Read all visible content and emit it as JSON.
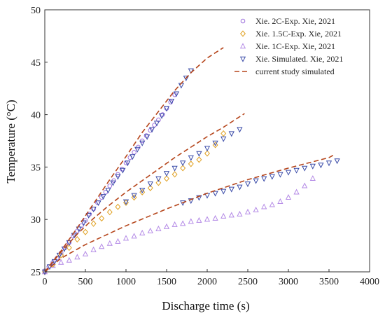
{
  "chart_data": {
    "type": "scatter",
    "xlabel": "Discharge time (s)",
    "ylabel": "Temperature (°C)",
    "xlim": [
      0,
      4000
    ],
    "ylim": [
      25,
      50
    ],
    "x_ticks": [
      "0",
      "500",
      "1000",
      "1500",
      "2000",
      "2500",
      "3000",
      "3500",
      "4000"
    ],
    "y_ticks": [
      "25",
      "30",
      "35",
      "40",
      "45",
      "50"
    ],
    "grid": false,
    "legend_position": "top-right",
    "series": [
      {
        "name": "Xie. 2C-Exp. Xie, 2021",
        "marker": "circle",
        "color": "#9b6fdc",
        "x": [
          0,
          50,
          100,
          150,
          200,
          250,
          300,
          350,
          400,
          450,
          500,
          550,
          600,
          650,
          700,
          750,
          800,
          850,
          900,
          950,
          1000,
          1050,
          1100,
          1150,
          1200,
          1250,
          1300,
          1350,
          1400,
          1450,
          1500,
          1550,
          1600
        ],
        "y": [
          25.1,
          25.5,
          25.9,
          26.3,
          26.8,
          27.3,
          27.8,
          28.4,
          28.9,
          29.4,
          29.9,
          30.5,
          31.0,
          31.6,
          32.1,
          32.6,
          33.2,
          33.7,
          34.3,
          34.8,
          35.4,
          35.9,
          36.4,
          36.9,
          37.5,
          38.0,
          38.5,
          39.0,
          39.5,
          40.0,
          40.6,
          41.2,
          41.9
        ]
      },
      {
        "name": "Xie. 1.5C-Exp. Xie, 2021",
        "marker": "diamond",
        "color": "#e0a020",
        "x": [
          0,
          100,
          200,
          300,
          400,
          500,
          600,
          700,
          800,
          900,
          1000,
          1100,
          1200,
          1300,
          1400,
          1500,
          1600,
          1700,
          1800,
          1900,
          2000,
          2100,
          2200
        ],
        "y": [
          25.0,
          25.7,
          26.6,
          27.3,
          28.1,
          28.8,
          29.6,
          30.1,
          30.7,
          31.2,
          31.6,
          32.1,
          32.6,
          33.0,
          33.5,
          33.9,
          34.3,
          34.9,
          35.3,
          35.7,
          36.3,
          37.1,
          38.2
        ]
      },
      {
        "name": "Xie. 1C-Exp. Xie, 2021",
        "marker": "triangle-up",
        "color": "#b48ae6",
        "x": [
          0,
          100,
          200,
          300,
          400,
          500,
          600,
          700,
          800,
          900,
          1000,
          1100,
          1200,
          1300,
          1400,
          1500,
          1600,
          1700,
          1800,
          1900,
          2000,
          2100,
          2200,
          2300,
          2400,
          2500,
          2600,
          2700,
          2800,
          2900,
          3000,
          3100,
          3200,
          3300
        ],
        "y": [
          25.0,
          25.6,
          25.9,
          26.1,
          26.4,
          26.7,
          27.1,
          27.4,
          27.7,
          27.9,
          28.2,
          28.4,
          28.7,
          28.9,
          29.1,
          29.3,
          29.5,
          29.6,
          29.8,
          29.9,
          30.0,
          30.1,
          30.3,
          30.4,
          30.5,
          30.7,
          30.9,
          31.2,
          31.4,
          31.7,
          32.1,
          32.6,
          33.2,
          33.9
        ]
      },
      {
        "name": "Xie. Simulated. Xie, 2021",
        "marker": "triangle-down",
        "color": "#3a4ba8",
        "x": [
          0,
          60,
          120,
          180,
          240,
          300,
          360,
          420,
          480,
          540,
          600,
          660,
          720,
          780,
          840,
          900,
          960,
          1020,
          1080,
          1140,
          1200,
          1260,
          1320,
          1380,
          1440,
          1500,
          1560,
          1620,
          1680,
          1740,
          1800,
          1000,
          1100,
          1200,
          1300,
          1400,
          1500,
          1600,
          1700,
          1800,
          1900,
          2000,
          2100,
          2200,
          2300,
          2400,
          1700,
          1800,
          1900,
          2000,
          2100,
          2200,
          2300,
          2400,
          2500,
          2600,
          2700,
          2800,
          2900,
          3000,
          3100,
          3200,
          3300,
          3400,
          3500,
          3600
        ],
        "y": [
          25.0,
          25.5,
          26.0,
          26.6,
          27.2,
          27.8,
          28.5,
          29.1,
          29.7,
          30.4,
          31.0,
          31.6,
          32.2,
          32.8,
          33.5,
          34.1,
          34.7,
          35.4,
          36.0,
          36.7,
          37.3,
          37.9,
          38.6,
          39.2,
          39.9,
          40.6,
          41.3,
          42.0,
          42.8,
          43.5,
          44.2,
          31.7,
          32.3,
          32.8,
          33.4,
          33.9,
          34.4,
          34.9,
          35.4,
          35.9,
          36.3,
          36.8,
          37.3,
          37.7,
          38.2,
          38.6,
          31.6,
          31.8,
          32.1,
          32.3,
          32.5,
          32.7,
          32.9,
          33.1,
          33.4,
          33.7,
          33.9,
          34.1,
          34.3,
          34.5,
          34.7,
          34.9,
          35.1,
          35.2,
          35.4,
          35.6
        ]
      },
      {
        "name": "current study simulated",
        "line_style": "dashed",
        "color": "#b5451b",
        "lines": [
          {
            "x": [
              0,
              100,
              200,
              400,
              600,
              800,
              1000,
              1200,
              1400,
              1600,
              1800,
              2000,
              2200
            ],
            "y": [
              25.0,
              26.0,
              27.0,
              29.2,
              31.5,
              33.8,
              36.0,
              38.3,
              40.3,
              42.3,
              44.0,
              45.4,
              46.4
            ]
          },
          {
            "x": [
              0,
              200,
              400,
              600,
              800,
              1000,
              1200,
              1400,
              1600,
              1800,
              2000,
              2200,
              2400,
              2460
            ],
            "y": [
              25.0,
              26.9,
              28.6,
              30.1,
              31.4,
              32.6,
              33.7,
              34.8,
              35.9,
              36.9,
              37.9,
              38.8,
              39.8,
              40.1
            ]
          },
          {
            "x": [
              0,
              200,
              500,
              1000,
              1500,
              2000,
              2500,
              3000,
              3500,
              3570
            ],
            "y": [
              25.0,
              26.3,
              27.6,
              29.4,
              31.0,
              32.5,
              33.8,
              34.9,
              35.9,
              36.2
            ]
          }
        ]
      }
    ]
  }
}
